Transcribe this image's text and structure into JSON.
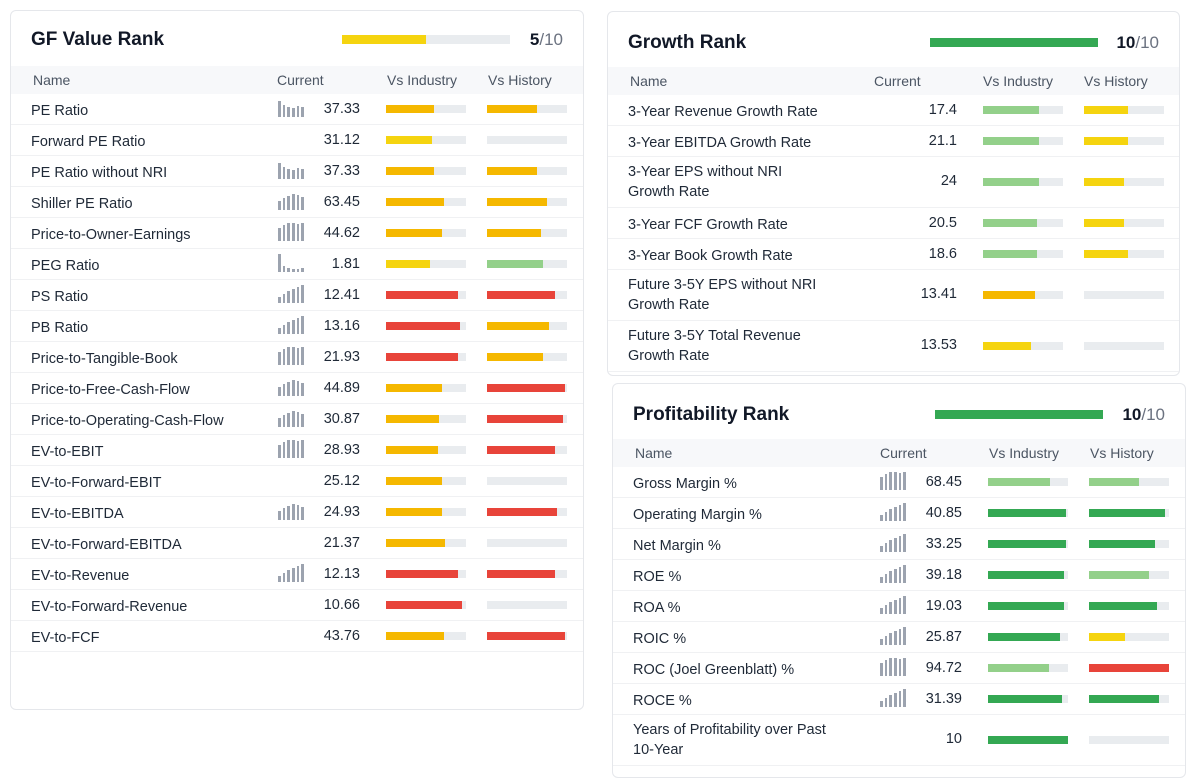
{
  "colors": {
    "yellow": "#f5d40f",
    "orange": "#f5b800",
    "red": "#e8443a",
    "dark_green": "#34a853",
    "light_green": "#93d08a",
    "empty": "#e9ecef"
  },
  "columns": {
    "name": "Name",
    "current": "Current",
    "vs_industry": "Vs Industry",
    "vs_history": "Vs History"
  },
  "sparkline_icon": "bar-chart-sparkline-icon",
  "gf_value": {
    "title": "GF Value Rank",
    "score": "5",
    "max": "/10",
    "fill_fraction": 0.5,
    "fill_color": "#f5d40f",
    "rows": [
      {
        "name": "PE Ratio",
        "value": "37.33",
        "spark": "down",
        "ind": [
          0.6,
          "orange"
        ],
        "hist": [
          0.62,
          "orange"
        ]
      },
      {
        "name": "Forward PE Ratio",
        "value": "31.12",
        "spark": null,
        "ind": [
          0.57,
          "yellow"
        ],
        "hist": [
          0,
          "empty"
        ]
      },
      {
        "name": "PE Ratio without NRI",
        "value": "37.33",
        "spark": "down",
        "ind": [
          0.6,
          "orange"
        ],
        "hist": [
          0.62,
          "orange"
        ]
      },
      {
        "name": "Shiller PE Ratio",
        "value": "63.45",
        "spark": "mid",
        "ind": [
          0.72,
          "orange"
        ],
        "hist": [
          0.75,
          "orange"
        ]
      },
      {
        "name": "Price-to-Owner-Earnings",
        "value": "44.62",
        "spark": "flat",
        "ind": [
          0.7,
          "orange"
        ],
        "hist": [
          0.68,
          "orange"
        ]
      },
      {
        "name": "PEG Ratio",
        "value": "1.81",
        "spark": "lowfirst",
        "ind": [
          0.55,
          "yellow"
        ],
        "hist": [
          0.7,
          "light_green"
        ]
      },
      {
        "name": "PS Ratio",
        "value": "12.41",
        "spark": "up",
        "ind": [
          0.9,
          "red"
        ],
        "hist": [
          0.85,
          "red"
        ]
      },
      {
        "name": "PB Ratio",
        "value": "13.16",
        "spark": "up",
        "ind": [
          0.92,
          "red"
        ],
        "hist": [
          0.78,
          "orange"
        ]
      },
      {
        "name": "Price-to-Tangible-Book",
        "value": "21.93",
        "spark": "flat",
        "ind": [
          0.9,
          "red"
        ],
        "hist": [
          0.7,
          "orange"
        ]
      },
      {
        "name": "Price-to-Free-Cash-Flow",
        "value": "44.89",
        "spark": "mid",
        "ind": [
          0.7,
          "orange"
        ],
        "hist": [
          0.98,
          "red"
        ]
      },
      {
        "name": "Price-to-Operating-Cash-Flow",
        "value": "30.87",
        "spark": "mid",
        "ind": [
          0.66,
          "orange"
        ],
        "hist": [
          0.95,
          "red"
        ]
      },
      {
        "name": "EV-to-EBIT",
        "value": "28.93",
        "spark": "flat",
        "ind": [
          0.65,
          "orange"
        ],
        "hist": [
          0.85,
          "red"
        ]
      },
      {
        "name": "EV-to-Forward-EBIT",
        "value": "25.12",
        "spark": null,
        "ind": [
          0.7,
          "orange"
        ],
        "hist": [
          0,
          "empty"
        ]
      },
      {
        "name": "EV-to-EBITDA",
        "value": "24.93",
        "spark": "mid",
        "ind": [
          0.7,
          "orange"
        ],
        "hist": [
          0.88,
          "red"
        ]
      },
      {
        "name": "EV-to-Forward-EBITDA",
        "value": "21.37",
        "spark": null,
        "ind": [
          0.74,
          "orange"
        ],
        "hist": [
          0,
          "empty"
        ]
      },
      {
        "name": "EV-to-Revenue",
        "value": "12.13",
        "spark": "up",
        "ind": [
          0.9,
          "red"
        ],
        "hist": [
          0.85,
          "red"
        ]
      },
      {
        "name": "EV-to-Forward-Revenue",
        "value": "10.66",
        "spark": null,
        "ind": [
          0.95,
          "red"
        ],
        "hist": [
          0,
          "empty"
        ]
      },
      {
        "name": "EV-to-FCF",
        "value": "43.76",
        "spark": null,
        "ind": [
          0.72,
          "orange"
        ],
        "hist": [
          0.98,
          "red"
        ]
      }
    ]
  },
  "growth": {
    "title": "Growth Rank",
    "score": "10",
    "max": "/10",
    "fill_fraction": 1.0,
    "fill_color": "#34a853",
    "rows": [
      {
        "name": "3-Year Revenue Growth Rate",
        "value": "17.4",
        "tall": false,
        "ind": [
          0.7,
          "light_green"
        ],
        "hist": [
          0.55,
          "yellow"
        ]
      },
      {
        "name": "3-Year EBITDA Growth Rate",
        "value": "21.1",
        "tall": false,
        "ind": [
          0.7,
          "light_green"
        ],
        "hist": [
          0.55,
          "yellow"
        ]
      },
      {
        "name": "3-Year EPS without NRI",
        "name2": "Growth Rate",
        "value": "24",
        "tall": true,
        "ind": [
          0.7,
          "light_green"
        ],
        "hist": [
          0.5,
          "yellow"
        ]
      },
      {
        "name": "3-Year FCF Growth Rate",
        "value": "20.5",
        "tall": false,
        "ind": [
          0.67,
          "light_green"
        ],
        "hist": [
          0.5,
          "yellow"
        ]
      },
      {
        "name": "3-Year Book Growth Rate",
        "value": "18.6",
        "tall": false,
        "ind": [
          0.68,
          "light_green"
        ],
        "hist": [
          0.55,
          "yellow"
        ]
      },
      {
        "name": "Future 3-5Y EPS without NRI",
        "name2": "Growth Rate",
        "value": "13.41",
        "tall": true,
        "ind": [
          0.65,
          "orange"
        ],
        "hist": [
          0,
          "empty"
        ]
      },
      {
        "name": "Future 3-5Y Total Revenue",
        "name2": "Growth Rate",
        "value": "13.53",
        "tall": true,
        "ind": [
          0.6,
          "yellow"
        ],
        "hist": [
          0,
          "empty"
        ]
      }
    ]
  },
  "profitability": {
    "title": "Profitability Rank",
    "score": "10",
    "max": "/10",
    "fill_fraction": 1.0,
    "fill_color": "#34a853",
    "rows": [
      {
        "name": "Gross Margin %",
        "value": "68.45",
        "spark": "flat",
        "tall": false,
        "ind": [
          0.78,
          "light_green"
        ],
        "hist": [
          0.62,
          "light_green"
        ]
      },
      {
        "name": "Operating Margin %",
        "value": "40.85",
        "spark": "up",
        "tall": false,
        "ind": [
          0.98,
          "dark_green"
        ],
        "hist": [
          0.95,
          "dark_green"
        ]
      },
      {
        "name": "Net Margin %",
        "value": "33.25",
        "spark": "up",
        "tall": false,
        "ind": [
          0.98,
          "dark_green"
        ],
        "hist": [
          0.82,
          "dark_green"
        ]
      },
      {
        "name": "ROE %",
        "value": "39.18",
        "spark": "up",
        "tall": false,
        "ind": [
          0.95,
          "dark_green"
        ],
        "hist": [
          0.75,
          "light_green"
        ]
      },
      {
        "name": "ROA %",
        "value": "19.03",
        "spark": "up",
        "tall": false,
        "ind": [
          0.95,
          "dark_green"
        ],
        "hist": [
          0.85,
          "dark_green"
        ]
      },
      {
        "name": "ROIC %",
        "value": "25.87",
        "spark": "up",
        "tall": false,
        "ind": [
          0.9,
          "dark_green"
        ],
        "hist": [
          0.45,
          "yellow"
        ]
      },
      {
        "name": "ROC (Joel Greenblatt) %",
        "value": "94.72",
        "spark": "flat",
        "tall": false,
        "ind": [
          0.76,
          "light_green"
        ],
        "hist": [
          1.0,
          "red"
        ]
      },
      {
        "name": "ROCE %",
        "value": "31.39",
        "spark": "up",
        "tall": false,
        "ind": [
          0.93,
          "dark_green"
        ],
        "hist": [
          0.88,
          "dark_green"
        ]
      },
      {
        "name": "Years of Profitability over Past",
        "name2": "10-Year",
        "value": "10",
        "spark": null,
        "tall": true,
        "ind": [
          1.0,
          "dark_green"
        ],
        "hist": [
          0,
          "empty"
        ]
      }
    ]
  }
}
